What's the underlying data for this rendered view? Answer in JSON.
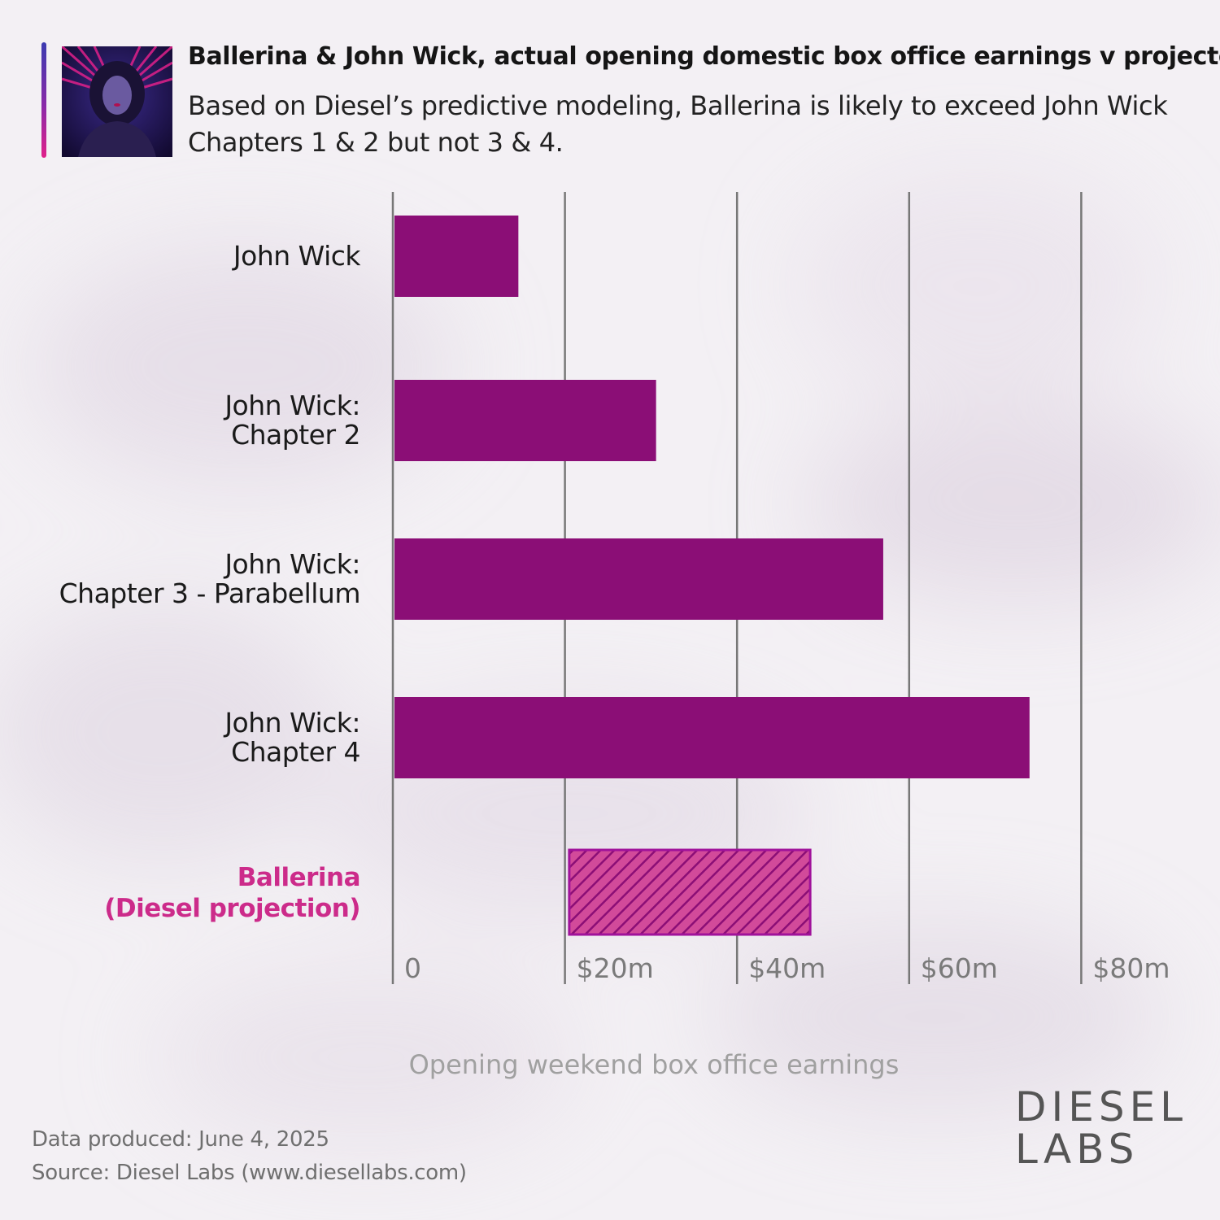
{
  "header": {
    "title": "Ballerina & John Wick, actual opening domestic box office earnings v projected",
    "subtitle": "Based on Diesel’s predictive modeling, Ballerina is likely to exceed John Wick Chapters 1 & 2 but not 3 & 4."
  },
  "chart_data": {
    "type": "bar",
    "orientation": "horizontal",
    "title": "Ballerina & John Wick, actual opening domestic box office earnings v projected",
    "xlabel": "Opening weekend box office earnings",
    "ylabel": "",
    "xlim": [
      0,
      80
    ],
    "x_ticks": [
      0,
      20,
      40,
      60,
      80
    ],
    "x_tick_labels": [
      "0",
      "$20m",
      "$40m",
      "$60m",
      "$80m"
    ],
    "grid": "vertical lines at ticks",
    "categories": [
      [
        "John Wick"
      ],
      [
        "John Wick:",
        "Chapter 2"
      ],
      [
        "John Wick:",
        "Chapter 3 - Parabellum"
      ],
      [
        "John Wick:",
        "Chapter 4"
      ],
      [
        "Ballerina",
        "(Diesel projection)"
      ]
    ],
    "values": [
      14.4,
      30.4,
      56.8,
      73.8,
      null
    ],
    "projection": {
      "category_index": 4,
      "range": [
        20.5,
        48.5
      ]
    },
    "colors": {
      "actual": "#8b0e76",
      "projection": "#d0308c",
      "projection_label": "#cc2b8a",
      "grid": "#777777",
      "tick": "#7a7a7a"
    }
  },
  "footer": {
    "data_produced": "Data produced: June 4, 2025",
    "source": "Source: Diesel Labs (www.diesellabs.com)"
  },
  "logo": {
    "line1": "DIESEL",
    "line2": "LABS"
  },
  "thumbnail": {
    "icon": "ballerina-portrait-image"
  }
}
